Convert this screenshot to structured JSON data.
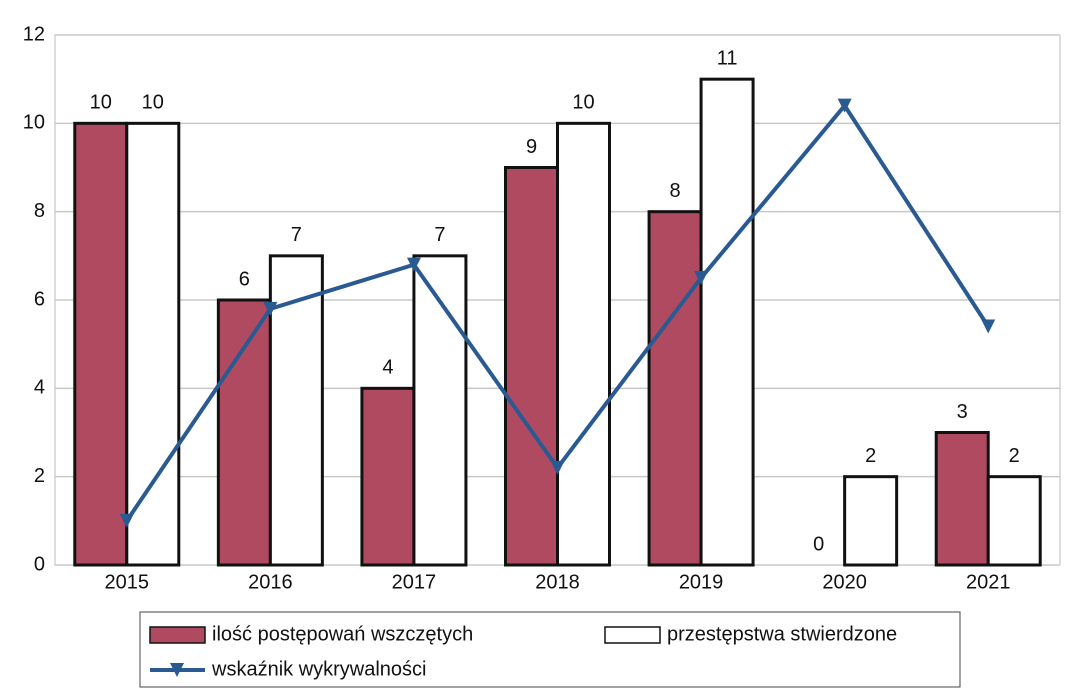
{
  "chart_data": {
    "type": "bar",
    "categories": [
      "2015",
      "2016",
      "2017",
      "2018",
      "2019",
      "2020",
      "2021"
    ],
    "series": [
      {
        "name": "ilość postępowań wszczętych",
        "type": "bar",
        "color": "#b04a60",
        "values": [
          10,
          6,
          4,
          9,
          8,
          0,
          3
        ]
      },
      {
        "name": "przestępstwa stwierdzone",
        "type": "bar",
        "color": "#ffffff",
        "values": [
          10,
          7,
          7,
          10,
          11,
          2,
          2
        ]
      },
      {
        "name": "wskaźnik wykrywalności",
        "type": "line",
        "color": "#2a5a92",
        "values": [
          1.0,
          5.8,
          6.8,
          2.2,
          6.5,
          10.4,
          5.4
        ]
      }
    ],
    "ylim": [
      0,
      12
    ],
    "yticks": [
      0,
      2,
      4,
      6,
      8,
      10,
      12
    ],
    "grid": true,
    "legend": "bottom"
  }
}
